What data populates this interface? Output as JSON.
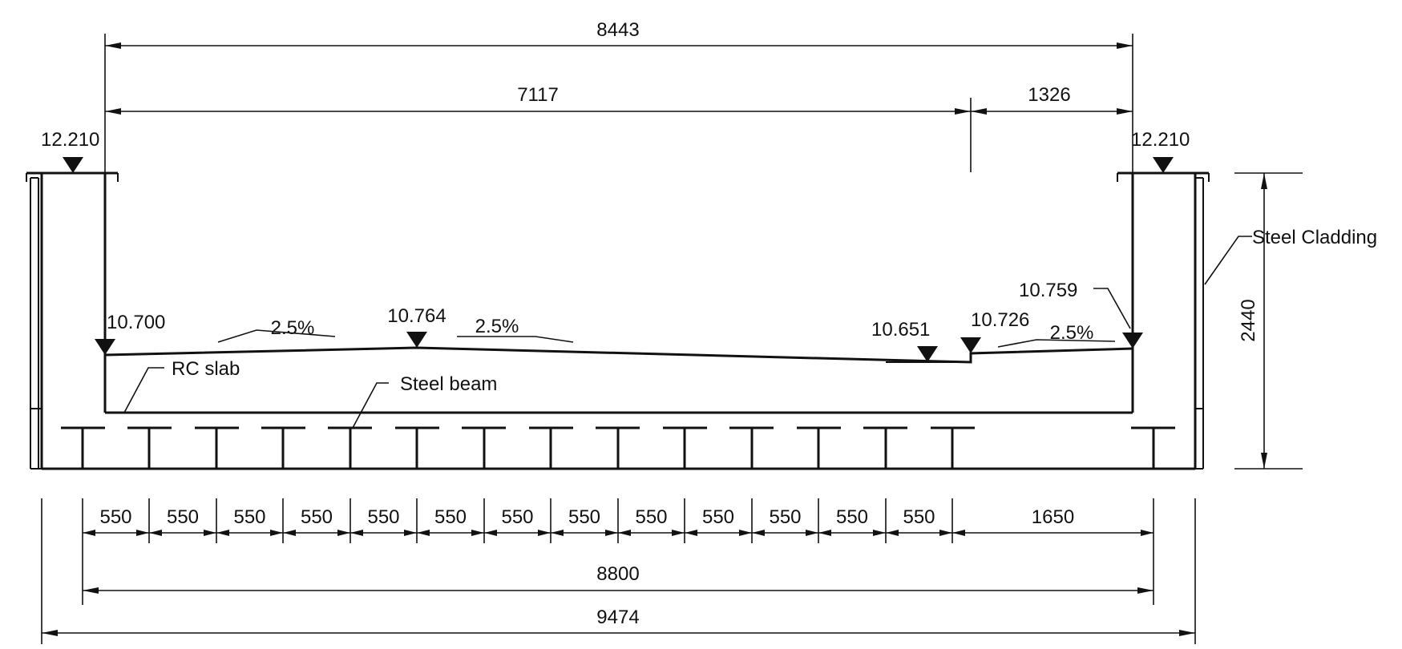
{
  "dimensions": {
    "top_overall": "8443",
    "top_left": "7117",
    "top_right": "1326",
    "height": "2440",
    "beam_spacings": [
      "550",
      "550",
      "550",
      "550",
      "550",
      "550",
      "550",
      "550",
      "550",
      "550",
      "550",
      "550",
      "550",
      "1650"
    ],
    "beam_total": "8800",
    "overall": "9474"
  },
  "levels": {
    "top_left": "12.210",
    "top_right": "12.210",
    "slab_left": "10.700",
    "crown": "10.764",
    "low_point": "10.651",
    "kerb": "10.726",
    "slab_right": "10.759"
  },
  "slopes": [
    "2.5%",
    "2.5%",
    "2.5%"
  ],
  "labels": {
    "rc_slab": "RC slab",
    "steel_beam": "Steel beam",
    "steel_cladding": "Steel Cladding"
  },
  "colors": {
    "line": "#111111",
    "background": "#ffffff"
  }
}
